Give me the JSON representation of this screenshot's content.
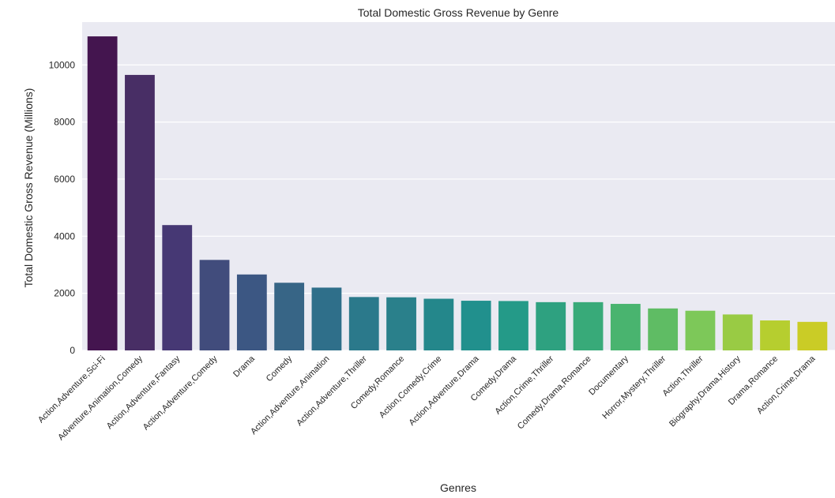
{
  "chart_data": {
    "type": "bar",
    "title": "Total Domestic Gross Revenue by Genre",
    "xlabel": "Genres",
    "ylabel": "Total Domestic Gross Revenue (Millions)",
    "ylim": [
      0,
      11500
    ],
    "yticks": [
      0,
      2000,
      4000,
      6000,
      8000,
      10000
    ],
    "grid": "horizontal",
    "palette": "viridis",
    "categories": [
      "Action,Adventure,Sci-Fi",
      "Adventure,Animation,Comedy",
      "Action,Adventure,Fantasy",
      "Action,Adventure,Comedy",
      "Drama",
      "Comedy",
      "Action,Adventure,Animation",
      "Action,Adventure,Thriller",
      "Comedy,Romance",
      "Action,Comedy,Crime",
      "Action,Adventure,Drama",
      "Comedy,Drama",
      "Action,Crime,Thriller",
      "Comedy,Drama,Romance",
      "Documentary",
      "Horror,Mystery,Thriller",
      "Action,Thriller",
      "Biography,Drama,History",
      "Drama,Romance",
      "Action,Crime,Drama"
    ],
    "values": [
      11000,
      9650,
      4390,
      3170,
      2660,
      2370,
      2200,
      1870,
      1860,
      1810,
      1740,
      1730,
      1690,
      1690,
      1630,
      1470,
      1390,
      1260,
      1050,
      1000
    ],
    "colors": [
      "#44154F",
      "#482E65",
      "#463874",
      "#414C7C",
      "#3C5783",
      "#376586",
      "#2F6F8A",
      "#2B798B",
      "#2A808B",
      "#24878B",
      "#21908D",
      "#249A88",
      "#2EA180",
      "#38AA79",
      "#49B46F",
      "#5FBC64",
      "#7DC859",
      "#99CB44",
      "#B6CE2F",
      "#CACC26"
    ],
    "background": "#EAEAF2"
  }
}
